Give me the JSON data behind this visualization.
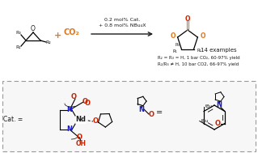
{
  "bg_color": "#ffffff",
  "text_color": "#1a1a1a",
  "orange_color": "#e07820",
  "red_color": "#cc2200",
  "blue_color": "#1a1acc",
  "gray_color": "#999999",
  "reaction_conditions": "0.2 mol% Cat.\n+ 0.8 mol% NBu₄X",
  "examples_text": "14 examples",
  "yield_text1": "R₂ = R₃ = H, 1 bar CO₂, 60-97% yield",
  "yield_text2": "R₂/R₃ ≠ H, 10 bar CO2, 66-97% yield",
  "co2_label": "CO₂"
}
